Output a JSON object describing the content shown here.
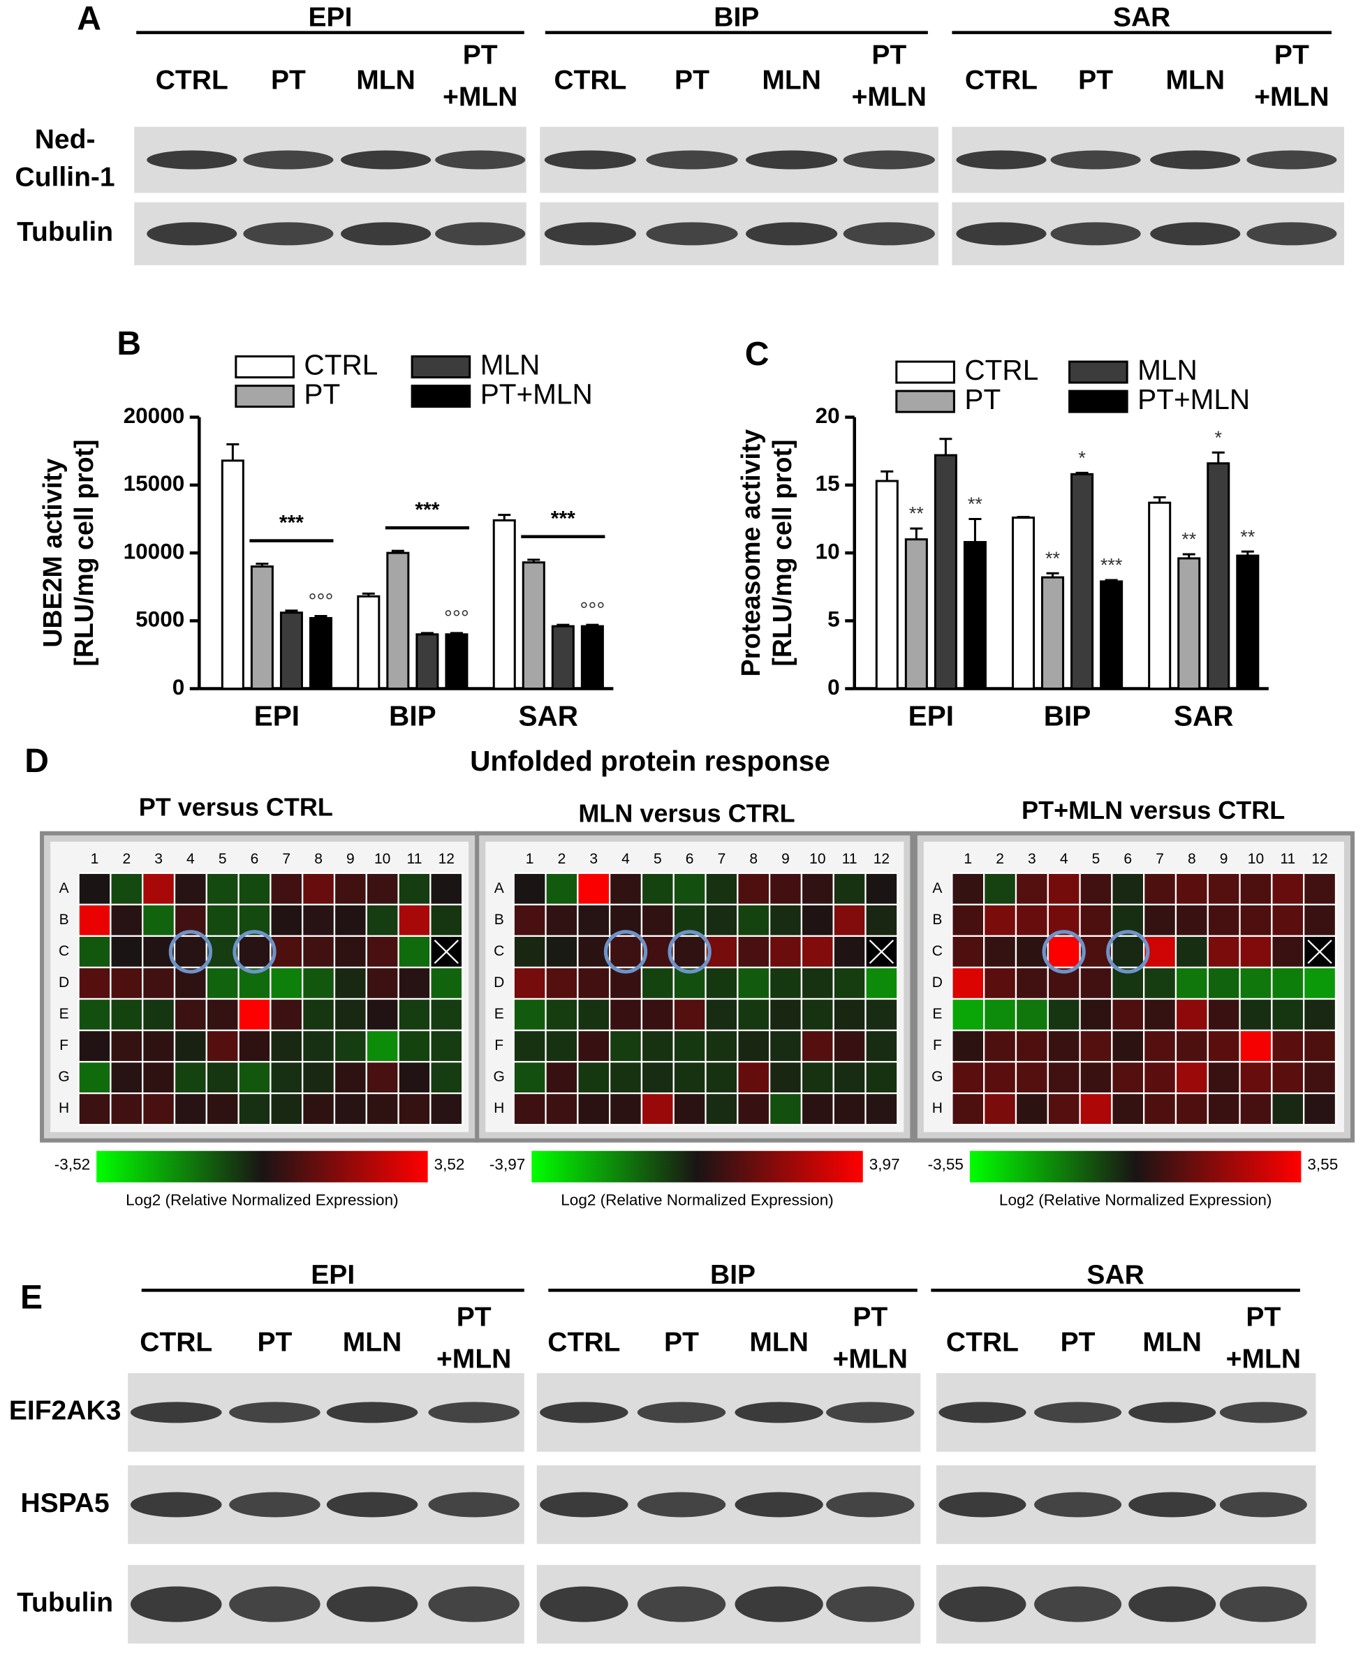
{
  "panel_labels": [
    "A",
    "B",
    "C",
    "D",
    "E"
  ],
  "blot_a": {
    "groups": [
      {
        "name": "EPI",
        "lanes": [
          [
            "CTRL"
          ],
          [
            "PT"
          ],
          [
            "MLN"
          ],
          [
            "PT",
            "+MLN"
          ]
        ]
      },
      {
        "name": "BIP",
        "lanes": [
          [
            "CTRL"
          ],
          [
            "PT"
          ],
          [
            "MLN"
          ],
          [
            "PT",
            "+MLN"
          ]
        ]
      },
      {
        "name": "SAR",
        "lanes": [
          [
            "CTRL"
          ],
          [
            "PT"
          ],
          [
            "MLN"
          ],
          [
            "PT",
            "+MLN"
          ]
        ]
      }
    ],
    "rows": [
      [
        "Ned-",
        "Cullin-1"
      ],
      [
        "Tubulin"
      ]
    ]
  },
  "chart_data": [
    {
      "type": "bar",
      "ylabel": [
        "UBE2M activity",
        "[RLU/mg cell prot]"
      ],
      "categories": [
        "EPI",
        "BIP",
        "SAR"
      ],
      "ylim": [
        0,
        20000
      ],
      "yticks": [
        0,
        5000,
        10000,
        15000,
        20000
      ],
      "bracket_labels": [
        "***",
        "***",
        "***"
      ],
      "series": [
        {
          "name": "CTRL",
          "color": "#ffffff",
          "values": [
            16800,
            6800,
            12400
          ],
          "errors": [
            1200,
            200,
            400
          ]
        },
        {
          "name": "PT",
          "color": "#a6a6a6",
          "values": [
            9000,
            10000,
            9300
          ],
          "errors": [
            200,
            150,
            200
          ]
        },
        {
          "name": "MLN",
          "color": "#3c3c3c",
          "values": [
            5600,
            4000,
            4600
          ],
          "errors": [
            150,
            100,
            100
          ]
        },
        {
          "name": "PT+MLN",
          "color": "#000000",
          "values": [
            5200,
            4000,
            4600
          ],
          "errors": [
            150,
            100,
            100
          ],
          "marks": [
            "°°°",
            "°°°",
            "°°°"
          ]
        }
      ]
    },
    {
      "type": "bar",
      "ylabel": [
        "Proteasome activity",
        "[RLU/mg cell prot]"
      ],
      "categories": [
        "EPI",
        "BIP",
        "SAR"
      ],
      "ylim": [
        0,
        20
      ],
      "yticks": [
        0,
        5,
        10,
        15,
        20
      ],
      "series": [
        {
          "name": "CTRL",
          "color": "#ffffff",
          "values": [
            15.3,
            12.6,
            13.7
          ],
          "errors": [
            0.7,
            0.05,
            0.4
          ]
        },
        {
          "name": "PT",
          "color": "#a6a6a6",
          "values": [
            11.0,
            8.2,
            9.6
          ],
          "errors": [
            0.8,
            0.3,
            0.3
          ],
          "marks": [
            "**",
            "**",
            "**"
          ]
        },
        {
          "name": "MLN",
          "color": "#3c3c3c",
          "values": [
            17.2,
            15.8,
            16.6
          ],
          "errors": [
            1.2,
            0.1,
            0.8
          ],
          "marks": [
            null,
            "*",
            "*"
          ]
        },
        {
          "name": "PT+MLN",
          "color": "#000000",
          "values": [
            10.8,
            7.9,
            9.8
          ],
          "errors": [
            1.7,
            0.1,
            0.3
          ],
          "marks": [
            "**",
            "***",
            "**"
          ]
        }
      ]
    }
  ],
  "heatmaps": {
    "title": "Unfolded protein response",
    "columns": [
      "1",
      "2",
      "3",
      "4",
      "5",
      "6",
      "7",
      "8",
      "9",
      "10",
      "11",
      "12"
    ],
    "rows": [
      "A",
      "B",
      "C",
      "D",
      "E",
      "F",
      "G",
      "H"
    ],
    "colorbar_label": "Log2 (Relative Normalized Expression)",
    "panels": [
      {
        "title": "PT versus CTRL",
        "clim": [
          {
            "value": -3.52,
            "label": "-3,52"
          },
          {
            "value": 3.52,
            "label": "3,52"
          }
        ],
        "values": [
          [
            0,
            -0.8,
            2.2,
            0.2,
            -0.8,
            -0.8,
            0.6,
            1.2,
            0.6,
            0.5,
            -0.6,
            0
          ],
          [
            3.2,
            0.2,
            -1.2,
            0.6,
            -0.8,
            -0.8,
            0.1,
            0.2,
            0.1,
            -0.6,
            2.2,
            -0.5
          ],
          [
            -1,
            0,
            0.1,
            0.2,
            -0.6,
            0.2,
            0.8,
            0.6,
            0.3,
            0.7,
            -1.3,
            null
          ],
          [
            0.9,
            0.8,
            0.6,
            0.3,
            -1.2,
            -1.3,
            -1.6,
            -1.0,
            -0.3,
            0.5,
            0.2,
            -1.2
          ],
          [
            -0.9,
            -0.7,
            -0.5,
            0.5,
            0.4,
            3.5,
            0.5,
            -0.5,
            -0.3,
            0.1,
            -0.6,
            -0.6
          ],
          [
            0.1,
            0.4,
            0.3,
            -0.2,
            0.9,
            0.3,
            -0.3,
            -0.4,
            -0.6,
            -1.8,
            -0.7,
            -0.6
          ],
          [
            -1.3,
            0.2,
            0.3,
            -0.7,
            -0.5,
            -1.0,
            -0.4,
            -0.3,
            0.3,
            0.7,
            0.1,
            -0.6
          ],
          [
            0.5,
            0.6,
            0.7,
            0.2,
            0.3,
            -0.4,
            -0.3,
            0.3,
            0.2,
            0.3,
            0.4,
            0.2
          ]
        ]
      },
      {
        "title": "MLN versus CTRL",
        "clim": [
          {
            "value": -3.97,
            "label": "-3,97"
          },
          {
            "value": 3.97,
            "label": "3,97"
          }
        ],
        "values": [
          [
            0,
            -1.2,
            3.9,
            0.4,
            -0.8,
            -1.0,
            -0.5,
            0.9,
            0.7,
            0.4,
            -0.5,
            0
          ],
          [
            0.8,
            0.4,
            0.2,
            0.3,
            0.4,
            -0.6,
            -0.4,
            -0.8,
            -0.4,
            0.1,
            1.8,
            -0.3
          ],
          [
            -0.3,
            -0.1,
            0.3,
            0.6,
            0.7,
            0.4,
            1.6,
            0.8,
            1.4,
            1.8,
            0.1,
            null
          ],
          [
            1.6,
            1.0,
            0.7,
            0.5,
            -0.8,
            -1.0,
            -0.6,
            -1.2,
            -0.6,
            -0.5,
            -0.7,
            -2.0
          ],
          [
            -1.2,
            -0.7,
            -0.5,
            0.5,
            0.5,
            1.0,
            -0.4,
            -0.6,
            -0.3,
            -0.5,
            -0.3,
            -0.4
          ],
          [
            -0.5,
            -0.5,
            0.5,
            -0.7,
            -0.5,
            -0.6,
            -0.5,
            -0.3,
            -0.4,
            1.0,
            0.5,
            -0.4
          ],
          [
            -1.0,
            0.5,
            -0.6,
            -0.5,
            -0.4,
            -0.5,
            -0.5,
            1.3,
            -0.3,
            -0.5,
            -0.4,
            -0.5
          ],
          [
            0.6,
            0.6,
            0.3,
            0.3,
            2.2,
            0.3,
            -0.4,
            0.5,
            -1.0,
            0.3,
            0.3,
            0.2
          ]
        ]
      },
      {
        "title": "PT+MLN versus CTRL",
        "clim": [
          {
            "value": -3.55,
            "label": "-3,55"
          },
          {
            "value": 3.55,
            "label": "3,55"
          }
        ],
        "values": [
          [
            0.4,
            -0.7,
            0.9,
            1.4,
            0.6,
            -0.3,
            0.8,
            1.0,
            0.9,
            0.8,
            1.2,
            0.6
          ],
          [
            0.7,
            1.5,
            1.2,
            1.4,
            0.8,
            -0.4,
            0.4,
            0.5,
            0.7,
            0.8,
            1.0,
            0.5
          ],
          [
            0.8,
            0.4,
            0.3,
            3.5,
            0.8,
            -0.3,
            2.8,
            -0.4,
            1.5,
            1.6,
            0.5,
            null
          ],
          [
            3.0,
            1.0,
            0.6,
            0.7,
            0.6,
            -0.5,
            -0.6,
            -1.5,
            -1.2,
            -1.5,
            -1.6,
            -2.0
          ],
          [
            -2.2,
            -1.8,
            -1.5,
            -0.5,
            0.3,
            0.8,
            0.4,
            1.8,
            0.5,
            -0.4,
            -0.5,
            -0.3
          ],
          [
            0.3,
            0.8,
            0.8,
            0.5,
            0.9,
            0.3,
            0.9,
            0.8,
            1.0,
            3.4,
            1.0,
            0.8
          ],
          [
            1.0,
            1.0,
            0.9,
            0.6,
            0.5,
            0.9,
            1.0,
            2.0,
            0.5,
            1.2,
            1.0,
            0.6
          ],
          [
            0.8,
            1.5,
            0.3,
            0.9,
            2.3,
            0.4,
            0.8,
            0.8,
            0.5,
            0.7,
            -0.3,
            0.2
          ]
        ]
      }
    ]
  },
  "blot_e": {
    "groups": [
      {
        "name": "EPI",
        "lanes": [
          [
            "CTRL"
          ],
          [
            "PT"
          ],
          [
            "MLN"
          ],
          [
            "PT",
            "+MLN"
          ]
        ]
      },
      {
        "name": "BIP",
        "lanes": [
          [
            "CTRL"
          ],
          [
            "PT"
          ],
          [
            "MLN"
          ],
          [
            "PT",
            "+MLN"
          ]
        ]
      },
      {
        "name": "SAR",
        "lanes": [
          [
            "CTRL"
          ],
          [
            "PT"
          ],
          [
            "MLN"
          ],
          [
            "PT",
            "+MLN"
          ]
        ]
      }
    ],
    "rows": [
      [
        "EIF2AK3"
      ],
      [
        "HSPA5"
      ],
      [
        "Tubulin"
      ]
    ]
  }
}
